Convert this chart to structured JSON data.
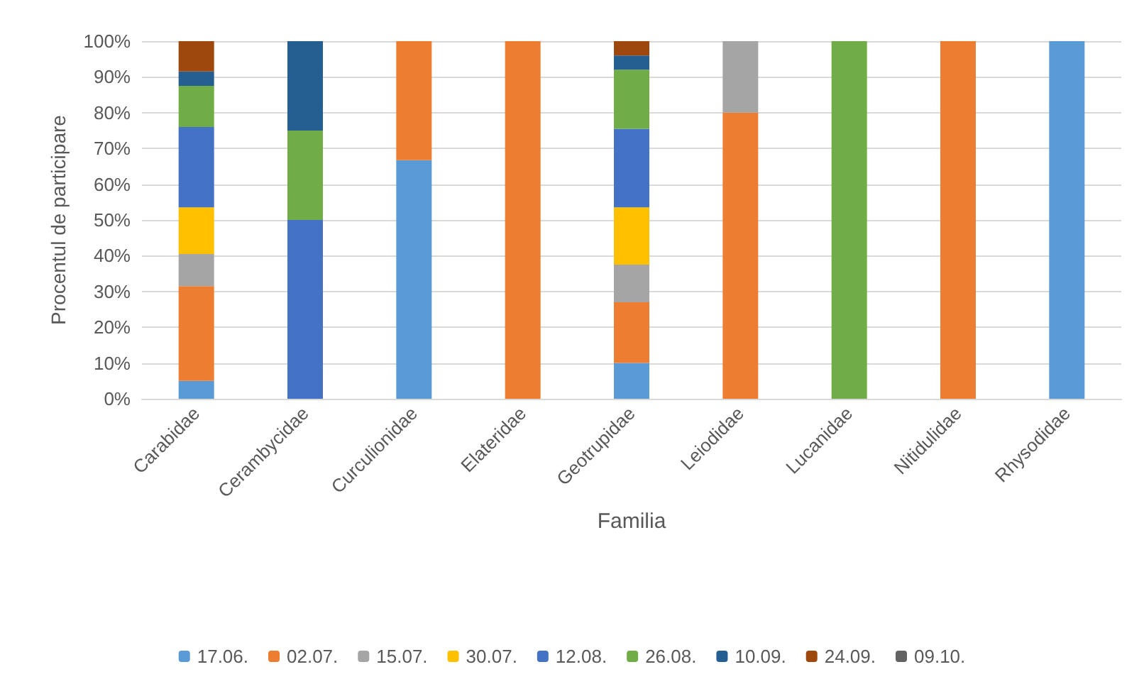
{
  "chart_data": {
    "type": "bar",
    "stacked": true,
    "xlabel": "Familia",
    "ylabel": "Procentul de participare",
    "categories": [
      "Carabidae",
      "Cerambycidae",
      "Curculionidae",
      "Elateridae",
      "Geotrupidae",
      "Leiodidae",
      "Lucanidae",
      "Nitidulidae",
      "Rhysodidae"
    ],
    "series": [
      {
        "name": "17.06.",
        "color": "#5b9bd5",
        "values": [
          5,
          null,
          66.7,
          null,
          10,
          null,
          null,
          null,
          100
        ]
      },
      {
        "name": "02.07.",
        "color": "#ed7d31",
        "values": [
          26.5,
          null,
          33.3,
          100,
          17,
          80,
          null,
          100,
          null
        ]
      },
      {
        "name": "15.07.",
        "color": "#a5a5a5",
        "values": [
          9,
          null,
          null,
          null,
          10.5,
          20,
          null,
          null,
          null
        ]
      },
      {
        "name": "30.07.",
        "color": "#ffc000",
        "values": [
          13,
          null,
          null,
          null,
          16,
          null,
          null,
          null,
          null
        ]
      },
      {
        "name": "12.08.",
        "color": "#4472c4",
        "values": [
          22.5,
          50,
          null,
          null,
          22,
          null,
          null,
          null,
          null
        ]
      },
      {
        "name": "26.08.",
        "color": "#70ad47",
        "values": [
          11.5,
          25,
          null,
          null,
          16.5,
          null,
          100,
          null,
          null
        ]
      },
      {
        "name": "10.09.",
        "color": "#255e91",
        "values": [
          4,
          25,
          null,
          null,
          4,
          null,
          null,
          null,
          null
        ]
      },
      {
        "name": "24.09.",
        "color": "#9e480e",
        "values": [
          8.5,
          null,
          null,
          null,
          4,
          null,
          null,
          null,
          null
        ]
      },
      {
        "name": "09.10.",
        "color": "#636363",
        "values": [
          null,
          null,
          null,
          null,
          null,
          null,
          null,
          null,
          null
        ]
      }
    ],
    "ylim": [
      0,
      100
    ],
    "yticks": [
      {
        "value": 0,
        "label": "0%"
      },
      {
        "value": 10,
        "label": "10%"
      },
      {
        "value": 20,
        "label": "20%"
      },
      {
        "value": 30,
        "label": "30%"
      },
      {
        "value": 40,
        "label": "40%"
      },
      {
        "value": 50,
        "label": "50%"
      },
      {
        "value": 60,
        "label": "60%"
      },
      {
        "value": 70,
        "label": "70%"
      },
      {
        "value": 80,
        "label": "80%"
      },
      {
        "value": 90,
        "label": "90%"
      },
      {
        "value": 100,
        "label": "100%"
      }
    ],
    "grid": "y",
    "legend": "bottom"
  }
}
